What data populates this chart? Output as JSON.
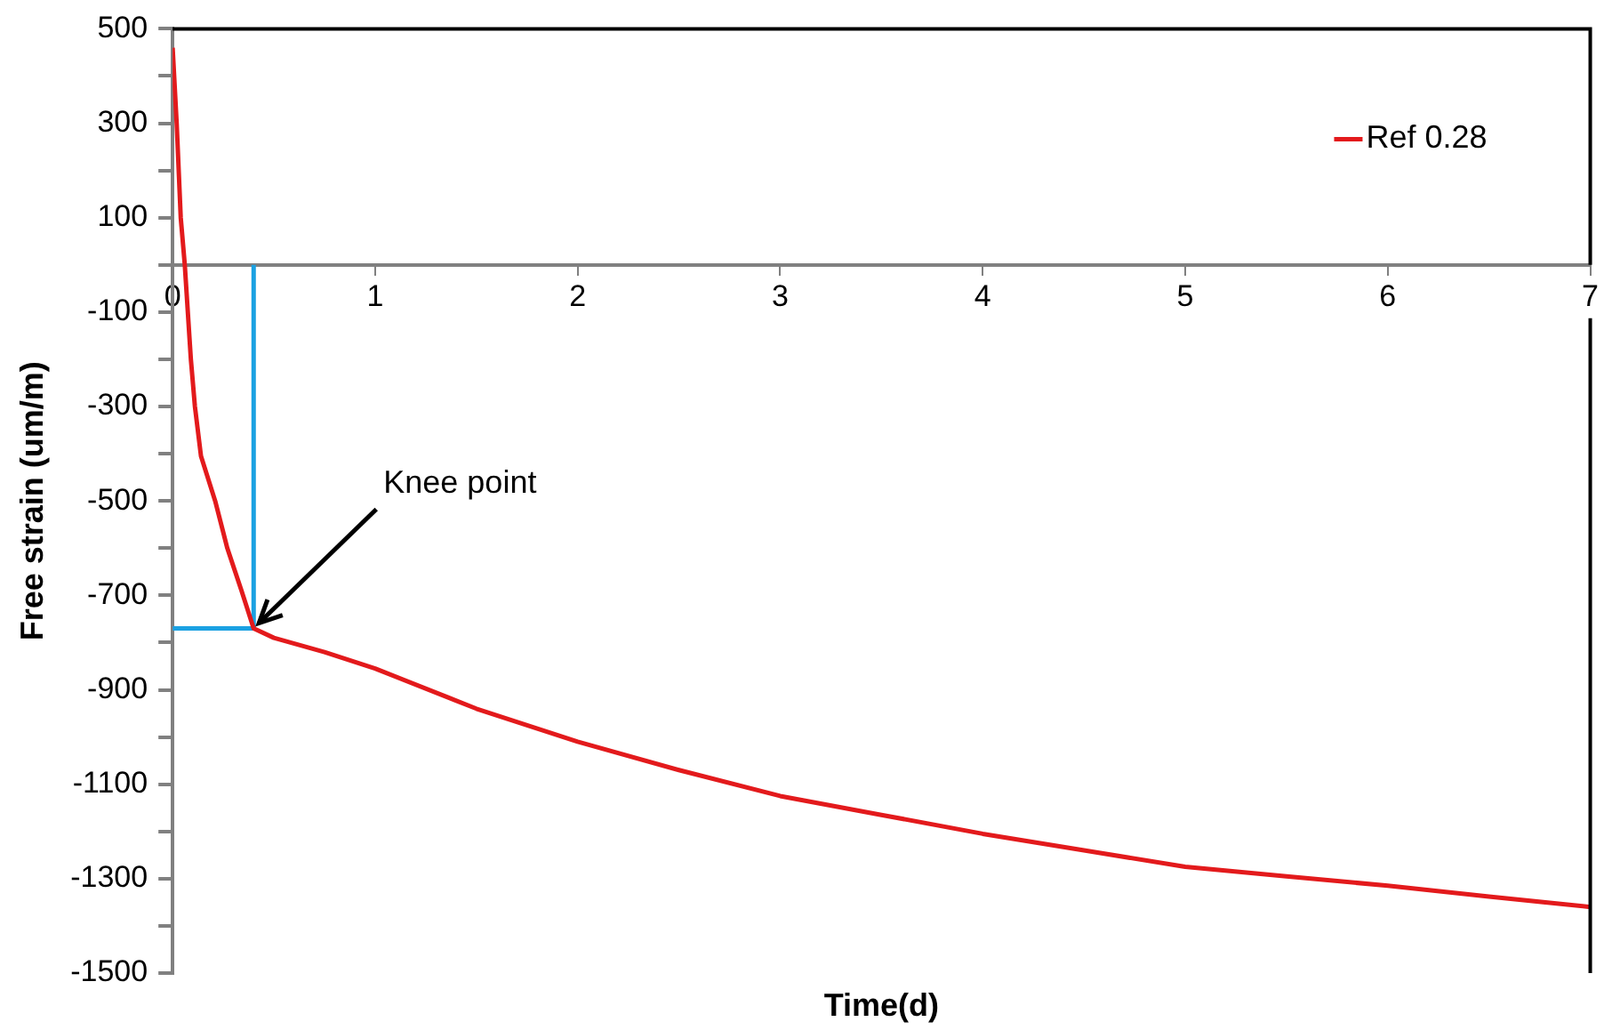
{
  "chart_data": {
    "type": "line",
    "xlabel": "Time(d)",
    "ylabel": "Free strain (um/m)",
    "series": [
      {
        "name": "Ref 0.28",
        "color": "#e31a1c",
        "x": [
          0,
          0.02,
          0.04,
          0.06,
          0.09,
          0.11,
          0.14,
          0.21,
          0.27,
          0.34,
          0.4,
          0.5,
          0.75,
          1,
          1.5,
          2,
          2.5,
          3,
          3.5,
          4,
          4.5,
          5,
          5.5,
          6,
          6.5,
          7
        ],
        "values": [
          460,
          300,
          100,
          0,
          -200,
          -300,
          -405,
          -500,
          -600,
          -690,
          -770,
          -790,
          -820,
          -855,
          -940,
          -1010,
          -1070,
          -1125,
          -1165,
          -1205,
          -1240,
          -1275,
          -1295,
          -1315,
          -1338,
          -1360
        ]
      },
      {
        "type": "line",
        "color": "#1ba1e2",
        "x": [
          0,
          0.4,
          0.4
        ],
        "values": [
          -770,
          -770,
          0
        ]
      }
    ],
    "xlim": [
      0,
      7
    ],
    "xticks": [
      0,
      1,
      2,
      3,
      4,
      5,
      6,
      7
    ],
    "ylim": [
      -1500,
      500
    ],
    "yticks": [
      -1500,
      {
        "value": -1400,
        "label": null
      },
      -1300,
      {
        "value": -1200,
        "label": null
      },
      -1100,
      {
        "value": -1000,
        "label": null
      },
      -900,
      {
        "value": -800,
        "label": null
      },
      -700,
      {
        "value": -600,
        "label": null
      },
      -500,
      {
        "value": -400,
        "label": null
      },
      -300,
      {
        "value": -200,
        "label": null
      },
      -100,
      {
        "value": 0,
        "label": null
      },
      100,
      {
        "value": 200,
        "label": null
      },
      300,
      {
        "value": 400,
        "label": null
      },
      500
    ],
    "annotations": [
      {
        "text": "Knee point",
        "x": 0.4,
        "y": -770
      }
    ],
    "grid": false,
    "legend": "top right",
    "marker": "none",
    "line_style": "solid"
  }
}
